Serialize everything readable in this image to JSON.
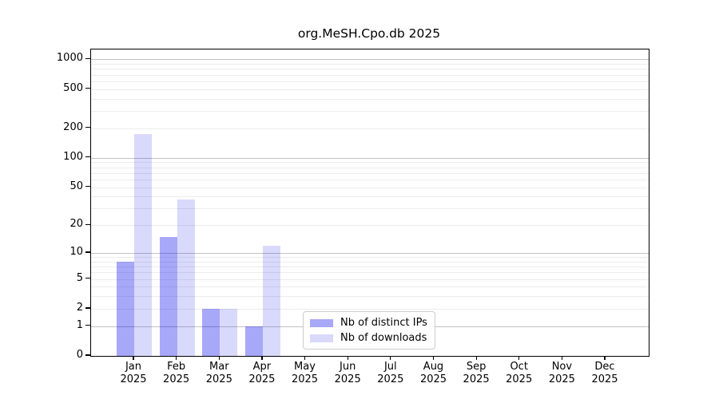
{
  "title": "org.MeSH.Cpo.db 2025",
  "legend": {
    "items": [
      {
        "label": "Nb of distinct IPs",
        "color": "rgba(0,0,235,0.34)"
      },
      {
        "label": "Nb of downloads",
        "color": "rgba(0,0,235,0.15)"
      }
    ]
  },
  "colors": {
    "distinct_ips_bar": "rgba(0,0,235,0.34)",
    "downloads_bar": "rgba(0,0,235,0.15)",
    "major_gridline": "#c2c2c2",
    "minor_gridline": "#ececec",
    "axis": "#000000"
  },
  "chart_data": {
    "type": "bar",
    "title": "org.MeSH.Cpo.db 2025",
    "categories": [
      "Jan 2025",
      "Feb 2025",
      "Mar 2025",
      "Apr 2025",
      "May 2025",
      "Jun 2025",
      "Jul 2025",
      "Aug 2025",
      "Sep 2025",
      "Oct 2025",
      "Nov 2025",
      "Dec 2025"
    ],
    "series": [
      {
        "name": "Nb of distinct IPs",
        "values": [
          8,
          15,
          2,
          1,
          0,
          0,
          0,
          0,
          0,
          0,
          0,
          0
        ]
      },
      {
        "name": "Nb of downloads",
        "values": [
          175,
          37,
          2,
          12,
          0,
          0,
          0,
          0,
          0,
          0,
          0,
          0
        ]
      }
    ],
    "xlabel": "",
    "ylabel": "",
    "yscale": "log1p",
    "ylim": [
      0,
      1265
    ],
    "ytick_values": [
      0,
      1,
      2,
      5,
      10,
      20,
      50,
      100,
      200,
      500,
      1000
    ],
    "ytick_labels": [
      "0",
      "1",
      "2",
      "5",
      "10",
      "20",
      "50",
      "100",
      "200",
      "500",
      "1000"
    ],
    "major_gridline_values": [
      1,
      10,
      100,
      1000
    ],
    "minor_gridline_values": [
      2,
      3,
      4,
      5,
      6,
      7,
      8,
      9,
      20,
      30,
      40,
      50,
      60,
      70,
      80,
      90,
      200,
      300,
      400,
      500,
      600,
      700,
      800,
      900
    ],
    "grid": true,
    "legend_position": "lower right inside"
  }
}
